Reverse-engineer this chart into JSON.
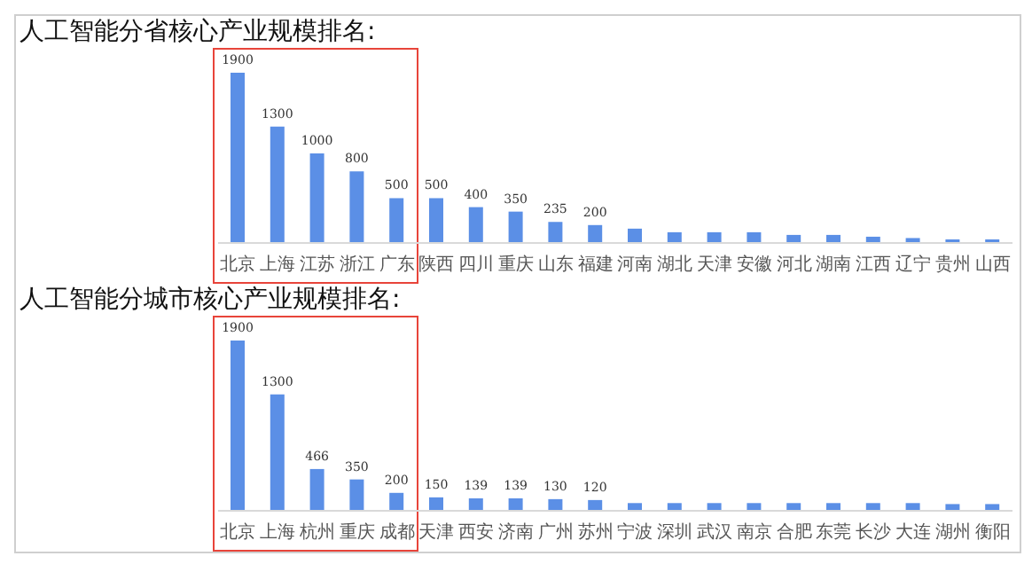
{
  "chart_data": [
    {
      "type": "bar",
      "title": "人工智能分省核心产业规模排名:",
      "categories": [
        "北京",
        "上海",
        "江苏",
        "浙江",
        "广东",
        "陕西",
        "四川",
        "重庆",
        "山东",
        "福建",
        "河南",
        "湖北",
        "天津",
        "安徽",
        "河北",
        "湖南",
        "江西",
        "辽宁",
        "贵州",
        "山西"
      ],
      "values": [
        1900,
        1300,
        1000,
        800,
        500,
        500,
        400,
        350,
        235,
        200,
        160,
        120,
        120,
        120,
        90,
        90,
        70,
        55,
        40,
        40
      ],
      "value_labels": [
        "1900",
        "1300",
        "1000",
        "800",
        "500",
        "500",
        "400",
        "350",
        "235",
        "200",
        null,
        null,
        null,
        null,
        null,
        null,
        null,
        null,
        null,
        null
      ],
      "color": "#5b8fe6",
      "grid": false
    },
    {
      "type": "bar",
      "title": "人工智能分城市核心产业规模排名:",
      "categories": [
        "北京",
        "上海",
        "杭州",
        "重庆",
        "成都",
        "天津",
        "西安",
        "济南",
        "广州",
        "苏州",
        "宁波",
        "深圳",
        "武汉",
        "南京",
        "合肥",
        "东莞",
        "长沙",
        "大连",
        "湖州",
        "衡阳"
      ],
      "values": [
        1900,
        1300,
        466,
        350,
        200,
        150,
        139,
        139,
        130,
        120,
        86,
        86,
        86,
        86,
        86,
        86,
        86,
        86,
        75,
        75
      ],
      "value_labels": [
        "1900",
        "1300",
        "466",
        "350",
        "200",
        "150",
        "139",
        "139",
        "130",
        "120",
        null,
        null,
        null,
        null,
        null,
        null,
        null,
        null,
        null,
        null
      ],
      "color": "#5b8fe6",
      "grid": false
    }
  ]
}
